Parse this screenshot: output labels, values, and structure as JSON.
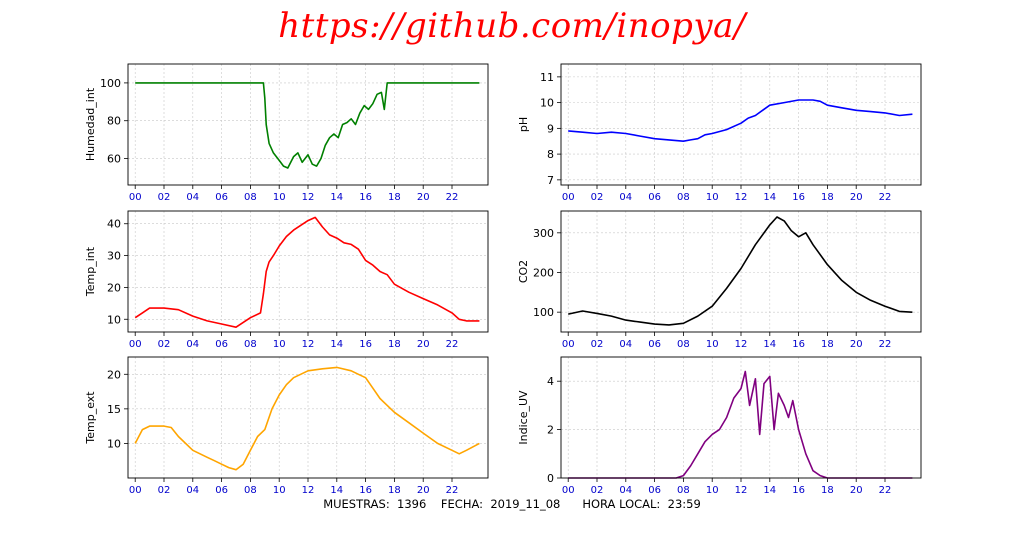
{
  "header": {
    "url_text": "https://github.com/inopya/"
  },
  "footer": {
    "samples_label": "MUESTRAS:",
    "samples_value": "1396",
    "date_label": "FECHA:",
    "date_value": "2019_11_08",
    "time_label": "HORA LOCAL:",
    "time_value": "23:59"
  },
  "x_ticks": [
    "00",
    "02",
    "04",
    "06",
    "08",
    "10",
    "12",
    "14",
    "16",
    "18",
    "20",
    "22"
  ],
  "chart_data": [
    {
      "type": "line",
      "id": "humedad",
      "ylabel": "Humedad_int",
      "color": "#008000",
      "xlim": [
        -0.5,
        24.5
      ],
      "ylim": [
        46,
        110
      ],
      "yticks": [
        60,
        80,
        100
      ],
      "grid": true,
      "x": [
        0,
        2,
        4,
        6,
        8,
        8.9,
        9.0,
        9.1,
        9.3,
        9.6,
        10,
        10.3,
        10.6,
        11.0,
        11.3,
        11.6,
        12.0,
        12.3,
        12.6,
        12.9,
        13.2,
        13.5,
        13.8,
        14.1,
        14.4,
        14.7,
        15.0,
        15.3,
        15.6,
        15.9,
        16.2,
        16.5,
        16.8,
        17.1,
        17.3,
        17.5,
        17.7,
        18,
        20,
        22,
        23.9
      ],
      "y": [
        100,
        100,
        100,
        100,
        100,
        100,
        92,
        78,
        68,
        63,
        59,
        56,
        55,
        61,
        63,
        58,
        62,
        57,
        56,
        60,
        67,
        71,
        73,
        71,
        78,
        79,
        81,
        78,
        84,
        88,
        86,
        89,
        94,
        95,
        86,
        100,
        100,
        100,
        100,
        100,
        100
      ]
    },
    {
      "type": "line",
      "id": "ph",
      "ylabel": "pH",
      "color": "#0000ff",
      "xlim": [
        -0.5,
        24.5
      ],
      "ylim": [
        6.8,
        11.5
      ],
      "yticks": [
        7,
        8,
        9,
        10,
        11
      ],
      "grid": true,
      "x": [
        0,
        1,
        2,
        3,
        4,
        5,
        6,
        7,
        8,
        8.5,
        9,
        9.5,
        10,
        11,
        12,
        12.5,
        13,
        13.5,
        14,
        15,
        16,
        17,
        17.5,
        18,
        19,
        20,
        21,
        22,
        23,
        23.9
      ],
      "y": [
        8.9,
        8.85,
        8.8,
        8.85,
        8.8,
        8.7,
        8.6,
        8.55,
        8.5,
        8.55,
        8.6,
        8.75,
        8.8,
        8.95,
        9.2,
        9.4,
        9.5,
        9.7,
        9.9,
        10.0,
        10.1,
        10.1,
        10.05,
        9.9,
        9.8,
        9.7,
        9.65,
        9.6,
        9.5,
        9.55
      ]
    },
    {
      "type": "line",
      "id": "temp_int",
      "ylabel": "Temp_int",
      "color": "#ff0000",
      "xlim": [
        -0.5,
        24.5
      ],
      "ylim": [
        6,
        44
      ],
      "yticks": [
        10,
        20,
        30,
        40
      ],
      "grid": true,
      "x": [
        0,
        0.5,
        1,
        2,
        3,
        4,
        5,
        6,
        7,
        8,
        8.7,
        8.9,
        9.1,
        9.3,
        9.6,
        10,
        10.5,
        11,
        11.5,
        12,
        12.5,
        13,
        13.5,
        14,
        14.5,
        15,
        15.5,
        16,
        16.5,
        17,
        17.5,
        18,
        19,
        20,
        21,
        22,
        22.5,
        23,
        23.9
      ],
      "y": [
        10.5,
        12,
        13.5,
        13.5,
        13,
        11,
        9.5,
        8.5,
        7.5,
        10.5,
        12,
        18,
        25,
        28,
        30,
        33,
        36,
        38,
        39.5,
        41,
        42,
        39,
        36.5,
        35.5,
        34,
        33.5,
        32,
        28.5,
        27,
        25,
        24,
        21,
        18.5,
        16.5,
        14.5,
        12,
        10,
        9.5,
        9.5
      ]
    },
    {
      "type": "line",
      "id": "co2",
      "ylabel": "CO2",
      "color": "#000000",
      "xlim": [
        -0.5,
        24.5
      ],
      "ylim": [
        50,
        355
      ],
      "yticks": [
        100,
        200,
        300
      ],
      "grid": true,
      "x": [
        0,
        1,
        2,
        3,
        4,
        5,
        6,
        7,
        8,
        9,
        10,
        11,
        12,
        13,
        14,
        14.5,
        15,
        15.5,
        16,
        16.5,
        17,
        18,
        19,
        20,
        21,
        22,
        23,
        23.9
      ],
      "y": [
        95,
        103,
        97,
        90,
        80,
        75,
        70,
        68,
        72,
        90,
        115,
        160,
        210,
        270,
        320,
        340,
        330,
        305,
        290,
        300,
        270,
        220,
        180,
        150,
        130,
        115,
        102,
        100
      ]
    },
    {
      "type": "line",
      "id": "temp_ext",
      "ylabel": "Temp_ext",
      "color": "#ffa500",
      "xlim": [
        -0.5,
        24.5
      ],
      "ylim": [
        5,
        22.5
      ],
      "yticks": [
        10,
        15,
        20
      ],
      "grid": true,
      "x": [
        0,
        0.5,
        1,
        2,
        2.5,
        3,
        4,
        5,
        5.5,
        6,
        6.5,
        7,
        7.5,
        8,
        8.5,
        9,
        9.5,
        10,
        10.5,
        11,
        12,
        13,
        14,
        15,
        15.5,
        16,
        16.5,
        17,
        18,
        19,
        20,
        21,
        22,
        22.5,
        23,
        23.9
      ],
      "y": [
        10,
        12,
        12.5,
        12.5,
        12.3,
        11,
        9,
        8,
        7.5,
        7,
        6.5,
        6.2,
        7,
        9,
        11,
        12,
        15,
        17,
        18.5,
        19.5,
        20.5,
        20.8,
        21,
        20.5,
        20,
        19.5,
        18,
        16.5,
        14.5,
        13,
        11.5,
        10,
        9,
        8.5,
        9,
        10
      ]
    },
    {
      "type": "line",
      "id": "uv",
      "ylabel": "Indice_UV",
      "color": "#800080",
      "xlim": [
        -0.5,
        24.5
      ],
      "ylim": [
        0,
        5
      ],
      "yticks": [
        0,
        2,
        4
      ],
      "grid": true,
      "x": [
        0,
        2,
        4,
        6,
        7,
        7.5,
        8,
        8.5,
        9,
        9.5,
        10,
        10.5,
        11,
        11.5,
        12,
        12.3,
        12.6,
        13,
        13.3,
        13.6,
        14,
        14.3,
        14.6,
        15,
        15.3,
        15.6,
        16,
        16.5,
        17,
        17.5,
        18,
        18.5,
        20,
        22,
        23.9
      ],
      "y": [
        0,
        0,
        0,
        0,
        0,
        0,
        0.1,
        0.5,
        1.0,
        1.5,
        1.8,
        2.0,
        2.5,
        3.3,
        3.7,
        4.4,
        3.0,
        4.1,
        1.8,
        3.9,
        4.2,
        2.0,
        3.5,
        3.0,
        2.5,
        3.2,
        2.0,
        1.0,
        0.3,
        0.1,
        0,
        0,
        0,
        0,
        0
      ]
    }
  ]
}
